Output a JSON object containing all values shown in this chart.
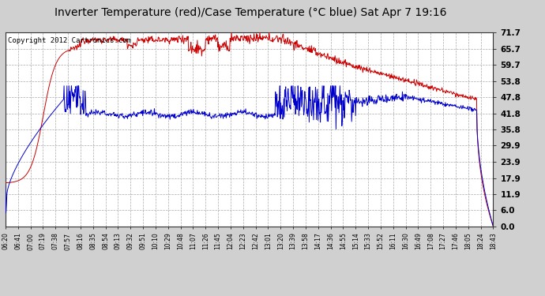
{
  "title": "Inverter Temperature (red)/Case Temperature (°C blue) Sat Apr 7 19:16",
  "copyright": "Copyright 2012 Cartronics.com",
  "ylabel_right": [
    "0.0",
    "6.0",
    "11.9",
    "17.9",
    "23.9",
    "29.9",
    "35.8",
    "41.8",
    "47.8",
    "53.8",
    "59.7",
    "65.7",
    "71.7"
  ],
  "yticks": [
    0.0,
    6.0,
    11.9,
    17.9,
    23.9,
    29.9,
    35.8,
    41.8,
    47.8,
    53.8,
    59.7,
    65.7,
    71.7
  ],
  "ylim": [
    0.0,
    71.7
  ],
  "x_labels": [
    "06:20",
    "06:41",
    "07:00",
    "07:19",
    "07:38",
    "07:57",
    "08:16",
    "08:35",
    "08:54",
    "09:13",
    "09:32",
    "09:51",
    "10:10",
    "10:29",
    "10:48",
    "11:07",
    "11:26",
    "11:45",
    "12:04",
    "12:23",
    "12:42",
    "13:01",
    "13:20",
    "13:39",
    "13:58",
    "14:17",
    "14:36",
    "14:55",
    "15:14",
    "15:33",
    "15:52",
    "16:11",
    "16:30",
    "16:49",
    "17:08",
    "17:27",
    "17:46",
    "18:05",
    "18:24",
    "18:43"
  ],
  "bg_color": "#d0d0d0",
  "plot_bg": "#ffffff",
  "grid_color": "#aaaaaa",
  "red_color": "#cc0000",
  "blue_color": "#0000cc",
  "title_fontsize": 10,
  "copyright_fontsize": 6.5
}
